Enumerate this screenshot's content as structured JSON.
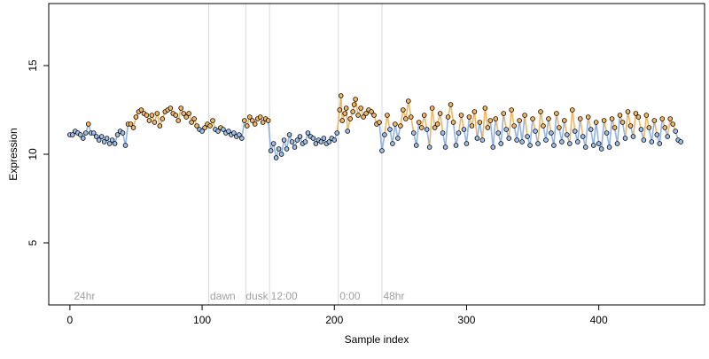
{
  "chart_data": {
    "type": "scatter",
    "title": "",
    "xlabel": "Sample index",
    "ylabel": "Expression",
    "xlim": [
      -16,
      480
    ],
    "ylim": [
      1.5,
      18.5
    ],
    "xticks": [
      0,
      100,
      200,
      300,
      400
    ],
    "yticks": [
      5,
      10,
      15
    ],
    "grid": false,
    "vlines": [
      105,
      133,
      151,
      203,
      236
    ],
    "annotations": [
      {
        "text": "24hr",
        "x": 3
      },
      {
        "text": "dawn",
        "x": 106
      },
      {
        "text": "dusk",
        "x": 133
      },
      {
        "text": "12:00",
        "x": 152
      },
      {
        "text": "0:00",
        "x": 204
      },
      {
        "text": "48hr",
        "x": 237
      }
    ],
    "annotation_y": 2.0,
    "colors": {
      "point_fill_low": "#9fbfe8",
      "point_fill_high": "#f3b764",
      "point_stroke": "#000000",
      "line_low": "#7fa6e0",
      "line_high": "#f0a848",
      "vline": "#d9d9d9",
      "annotation": "#a0a0a0",
      "axis": "#000000"
    },
    "series_points": [
      [
        0,
        11.1
      ],
      [
        2,
        11.1
      ],
      [
        4,
        11.3
      ],
      [
        6,
        11.2
      ],
      [
        8,
        11.1
      ],
      [
        10,
        10.9
      ],
      [
        12,
        11.2
      ],
      [
        14,
        11.7
      ],
      [
        16,
        11.2
      ],
      [
        18,
        11.2
      ],
      [
        20,
        11.0
      ],
      [
        22,
        10.8
      ],
      [
        24,
        11.0
      ],
      [
        26,
        10.7
      ],
      [
        28,
        10.9
      ],
      [
        30,
        10.6
      ],
      [
        32,
        10.8
      ],
      [
        34,
        10.6
      ],
      [
        36,
        11.1
      ],
      [
        38,
        11.3
      ],
      [
        40,
        11.2
      ],
      [
        42,
        10.5
      ],
      [
        44,
        11.7
      ],
      [
        46,
        11.7
      ],
      [
        48,
        11.5
      ],
      [
        50,
        12.1
      ],
      [
        52,
        12.4
      ],
      [
        54,
        12.5
      ],
      [
        56,
        12.3
      ],
      [
        58,
        12.2
      ],
      [
        60,
        11.9
      ],
      [
        62,
        12.2
      ],
      [
        64,
        11.8
      ],
      [
        66,
        12.3
      ],
      [
        68,
        11.6
      ],
      [
        70,
        12.0
      ],
      [
        72,
        12.4
      ],
      [
        74,
        12.5
      ],
      [
        76,
        12.6
      ],
      [
        78,
        12.3
      ],
      [
        80,
        12.2
      ],
      [
        82,
        11.9
      ],
      [
        84,
        12.6
      ],
      [
        86,
        12.3
      ],
      [
        88,
        12.1
      ],
      [
        90,
        12.3
      ],
      [
        92,
        11.8
      ],
      [
        94,
        12.0
      ],
      [
        96,
        11.6
      ],
      [
        98,
        11.4
      ],
      [
        100,
        11.3
      ],
      [
        102,
        11.5
      ],
      [
        104,
        11.7
      ],
      [
        106,
        11.6
      ],
      [
        108,
        11.9
      ],
      [
        110,
        11.4
      ],
      [
        112,
        11.3
      ],
      [
        114,
        11.5
      ],
      [
        116,
        11.4
      ],
      [
        118,
        11.2
      ],
      [
        120,
        11.3
      ],
      [
        122,
        11.1
      ],
      [
        124,
        11.2
      ],
      [
        126,
        11.0
      ],
      [
        128,
        11.1
      ],
      [
        130,
        10.9
      ],
      [
        132,
        11.9
      ],
      [
        134,
        11.6
      ],
      [
        136,
        12.1
      ],
      [
        138,
        11.9
      ],
      [
        140,
        11.7
      ],
      [
        142,
        12.0
      ],
      [
        144,
        12.1
      ],
      [
        146,
        11.8
      ],
      [
        148,
        12.0
      ],
      [
        150,
        11.9
      ],
      [
        152,
        10.2
      ],
      [
        154,
        10.6
      ],
      [
        156,
        9.8
      ],
      [
        158,
        10.3
      ],
      [
        160,
        10.0
      ],
      [
        162,
        10.8
      ],
      [
        164,
        10.3
      ],
      [
        166,
        11.1
      ],
      [
        168,
        10.7
      ],
      [
        170,
        10.4
      ],
      [
        172,
        10.8
      ],
      [
        174,
        11.0
      ],
      [
        176,
        10.6
      ],
      [
        178,
        10.7
      ],
      [
        180,
        11.2
      ],
      [
        182,
        11.0
      ],
      [
        184,
        10.9
      ],
      [
        186,
        10.6
      ],
      [
        188,
        10.8
      ],
      [
        190,
        10.7
      ],
      [
        192,
        10.9
      ],
      [
        194,
        10.6
      ],
      [
        196,
        10.7
      ],
      [
        198,
        10.9
      ],
      [
        200,
        10.8
      ],
      [
        202,
        11.2
      ],
      [
        204,
        12.5
      ],
      [
        205,
        13.3
      ],
      [
        206,
        11.9
      ],
      [
        208,
        12.3
      ],
      [
        209,
        12.6
      ],
      [
        210,
        11.3
      ],
      [
        212,
        12.0
      ],
      [
        214,
        12.4
      ],
      [
        215,
        12.8
      ],
      [
        216,
        13.1
      ],
      [
        218,
        12.2
      ],
      [
        220,
        12.6
      ],
      [
        222,
        12.1
      ],
      [
        224,
        12.3
      ],
      [
        226,
        12.5
      ],
      [
        228,
        12.4
      ],
      [
        230,
        12.2
      ],
      [
        232,
        11.7
      ],
      [
        234,
        11.8
      ],
      [
        236,
        10.2
      ],
      [
        238,
        11.1
      ],
      [
        240,
        12.2
      ],
      [
        242,
        11.4
      ],
      [
        244,
        10.6
      ],
      [
        246,
        11.7
      ],
      [
        248,
        10.9
      ],
      [
        250,
        11.6
      ],
      [
        252,
        12.5
      ],
      [
        254,
        12.0
      ],
      [
        256,
        13.0
      ],
      [
        258,
        12.1
      ],
      [
        260,
        11.2
      ],
      [
        262,
        10.5
      ],
      [
        264,
        11.8
      ],
      [
        266,
        11.5
      ],
      [
        268,
        12.2
      ],
      [
        270,
        11.4
      ],
      [
        272,
        10.4
      ],
      [
        274,
        12.6
      ],
      [
        276,
        11.5
      ],
      [
        278,
        11.7
      ],
      [
        280,
        12.3
      ],
      [
        282,
        11.2
      ],
      [
        284,
        10.4
      ],
      [
        286,
        12.1
      ],
      [
        288,
        12.8
      ],
      [
        290,
        11.8
      ],
      [
        292,
        10.5
      ],
      [
        294,
        11.2
      ],
      [
        296,
        12.2
      ],
      [
        298,
        11.4
      ],
      [
        300,
        10.6
      ],
      [
        302,
        12.1
      ],
      [
        304,
        11.6
      ],
      [
        306,
        12.4
      ],
      [
        308,
        10.9
      ],
      [
        310,
        11.8
      ],
      [
        312,
        10.8
      ],
      [
        314,
        12.6
      ],
      [
        316,
        11.5
      ],
      [
        318,
        11.9
      ],
      [
        320,
        10.4
      ],
      [
        322,
        12.0
      ],
      [
        324,
        11.2
      ],
      [
        326,
        10.6
      ],
      [
        328,
        12.3
      ],
      [
        330,
        11.4
      ],
      [
        332,
        10.9
      ],
      [
        334,
        12.5
      ],
      [
        336,
        11.6
      ],
      [
        338,
        10.8
      ],
      [
        340,
        11.9
      ],
      [
        342,
        10.7
      ],
      [
        344,
        12.2
      ],
      [
        346,
        11.0
      ],
      [
        348,
        10.5
      ],
      [
        350,
        12.0
      ],
      [
        352,
        11.3
      ],
      [
        354,
        10.6
      ],
      [
        356,
        12.4
      ],
      [
        358,
        11.6
      ],
      [
        360,
        10.8
      ],
      [
        362,
        12.0
      ],
      [
        364,
        11.2
      ],
      [
        366,
        10.5
      ],
      [
        368,
        12.3
      ],
      [
        370,
        11.5
      ],
      [
        372,
        10.7
      ],
      [
        374,
        11.9
      ],
      [
        376,
        11.1
      ],
      [
        378,
        10.6
      ],
      [
        380,
        12.5
      ],
      [
        382,
        11.3
      ],
      [
        384,
        10.7
      ],
      [
        386,
        12.0
      ],
      [
        388,
        11.0
      ],
      [
        390,
        10.4
      ],
      [
        392,
        12.1
      ],
      [
        394,
        11.4
      ],
      [
        396,
        10.5
      ],
      [
        398,
        11.8
      ],
      [
        400,
        10.6
      ],
      [
        402,
        10.3
      ],
      [
        404,
        11.9
      ],
      [
        406,
        11.2
      ],
      [
        408,
        10.4
      ],
      [
        410,
        12.0
      ],
      [
        412,
        11.5
      ],
      [
        414,
        10.6
      ],
      [
        416,
        12.2
      ],
      [
        418,
        11.8
      ],
      [
        420,
        10.9
      ],
      [
        422,
        12.4
      ],
      [
        424,
        11.6
      ],
      [
        426,
        11.0
      ],
      [
        428,
        12.3
      ],
      [
        430,
        12.1
      ],
      [
        432,
        11.4
      ],
      [
        434,
        10.8
      ],
      [
        436,
        12.2
      ],
      [
        438,
        11.5
      ],
      [
        440,
        10.7
      ],
      [
        442,
        11.9
      ],
      [
        444,
        11.1
      ],
      [
        446,
        10.6
      ],
      [
        448,
        12.0
      ],
      [
        450,
        11.5
      ],
      [
        452,
        11.0
      ],
      [
        454,
        12.0
      ],
      [
        456,
        11.7
      ],
      [
        458,
        11.3
      ],
      [
        460,
        10.8
      ],
      [
        462,
        10.7
      ]
    ]
  }
}
